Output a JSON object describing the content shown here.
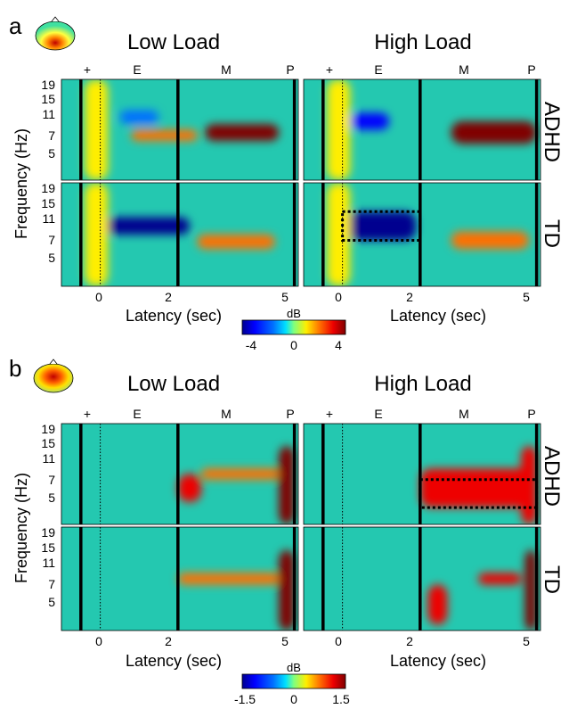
{
  "colors": {
    "colormap": [
      "#00008f",
      "#0000ff",
      "#0070ff",
      "#00e0ff",
      "#7fff7f",
      "#ffee00",
      "#ff7000",
      "#ee0000",
      "#800000"
    ],
    "background": "#24c8b0",
    "marker_line": "#000000"
  },
  "panel_a": {
    "letter": "a",
    "conditions": {
      "left": "Low Load",
      "right": "High Load"
    },
    "groups": [
      "ADHD",
      "TD"
    ],
    "phase_markers": [
      "+",
      "E",
      "M",
      "P"
    ],
    "ylabel": "Frequency (Hz)",
    "xlabel": "Latency (sec)",
    "yticks": [
      "19",
      "15",
      "11",
      "7",
      "5"
    ],
    "xticks": [
      "0",
      "2",
      "5"
    ],
    "colorbar": {
      "title": "dB",
      "ticks": [
        "-4",
        "0",
        "4"
      ]
    }
  },
  "panel_b": {
    "letter": "b",
    "conditions": {
      "left": "Low Load",
      "right": "High Load"
    },
    "groups": [
      "ADHD",
      "TD"
    ],
    "phase_markers": [
      "+",
      "E",
      "M",
      "P"
    ],
    "ylabel": "Frequency (Hz)",
    "xlabel": "Latency (sec)",
    "yticks": [
      "19",
      "15",
      "11",
      "7",
      "5"
    ],
    "xticks": [
      "0",
      "2",
      "5"
    ],
    "colorbar": {
      "title": "dB",
      "ticks": [
        "-1.5",
        "0",
        "1.5"
      ]
    }
  },
  "chart_data": [
    {
      "type": "heatmap",
      "panel": "a",
      "xlabel": "Latency (sec)",
      "ylabel": "Frequency (Hz)",
      "xlim": [
        -1.0,
        5.1
      ],
      "ylim": [
        1,
        19
      ],
      "xticks": [
        0,
        2,
        5
      ],
      "yticks": [
        5,
        7,
        11,
        15,
        19
      ],
      "event_lines_sec": [
        -0.5,
        2,
        5
      ],
      "stimulus_onset_sec": 0,
      "colorbar_range_db": [
        -4,
        4
      ],
      "maps": [
        {
          "condition": "Low Load",
          "group": "ADHD",
          "blobs": [
            {
              "t": [
                2.7,
                4.6
              ],
              "f": [
                8,
                11
              ],
              "db": 4.0
            },
            {
              "t": [
                0.8,
                2.5
              ],
              "f": [
                8,
                10
              ],
              "db": 2.2
            },
            {
              "t": [
                0.5,
                1.5
              ],
              "f": [
                11,
                13.5
              ],
              "db": -1.6
            },
            {
              "t": [
                -0.4,
                0.2
              ],
              "f": [
                1,
                19
              ],
              "db": 1.2
            }
          ]
        },
        {
          "condition": "High Load",
          "group": "ADHD",
          "blobs": [
            {
              "t": [
                2.8,
                5.0
              ],
              "f": [
                7.5,
                11.5
              ],
              "db": 4.2
            },
            {
              "t": [
                0.2,
                1.2
              ],
              "f": [
                10,
                13
              ],
              "db": -3.5
            },
            {
              "t": [
                -0.4,
                0.2
              ],
              "f": [
                1,
                19
              ],
              "db": 1.2
            }
          ]
        },
        {
          "condition": "Low Load",
          "group": "TD",
          "blobs": [
            {
              "t": [
                0.1,
                2.3
              ],
              "f": [
                10,
                13
              ],
              "db": -3.8
            },
            {
              "t": [
                2.5,
                4.5
              ],
              "f": [
                7.5,
                10
              ],
              "db": 1.8
            },
            {
              "t": [
                -0.4,
                0.2
              ],
              "f": [
                1,
                19
              ],
              "db": 1.3
            }
          ]
        },
        {
          "condition": "High Load",
          "group": "TD",
          "blobs": [
            {
              "t": [
                0.1,
                1.9
              ],
              "f": [
                9,
                14
              ],
              "db": -4.2
            },
            {
              "t": [
                2.8,
                4.8
              ],
              "f": [
                7.5,
                10.5
              ],
              "db": 1.8
            },
            {
              "t": [
                -0.4,
                0.2
              ],
              "f": [
                1,
                19
              ],
              "db": 1.4
            }
          ]
        }
      ],
      "highlight_box": {
        "condition": "High Load",
        "group": "TD",
        "t": [
          0,
          2
        ],
        "f": [
          9,
          14
        ]
      }
    },
    {
      "type": "heatmap",
      "panel": "b",
      "xlabel": "Latency (sec)",
      "ylabel": "Frequency (Hz)",
      "xlim": [
        -1.0,
        5.1
      ],
      "ylim": [
        1,
        19
      ],
      "xticks": [
        0,
        2,
        5
      ],
      "yticks": [
        5,
        7,
        11,
        15,
        19
      ],
      "event_lines_sec": [
        -0.5,
        2,
        5
      ],
      "stimulus_onset_sec": 0,
      "colorbar_range_db": [
        -1.5,
        1.5
      ],
      "maps": [
        {
          "condition": "Low Load",
          "group": "ADHD",
          "blobs": [
            {
              "t": [
                2.0,
                2.6
              ],
              "f": [
                5,
                10
              ],
              "db": 1.3
            },
            {
              "t": [
                2.6,
                4.6
              ],
              "f": [
                9,
                11
              ],
              "db": 0.9
            },
            {
              "t": [
                4.6,
                5.0
              ],
              "f": [
                1,
                15
              ],
              "db": 1.5
            }
          ]
        },
        {
          "condition": "High Load",
          "group": "ADHD",
          "blobs": [
            {
              "t": [
                2.0,
                4.9
              ],
              "f": [
                4,
                11
              ],
              "db": 1.2
            },
            {
              "t": [
                4.6,
                5.0
              ],
              "f": [
                1,
                15
              ],
              "db": 1.3
            }
          ]
        },
        {
          "condition": "Low Load",
          "group": "TD",
          "blobs": [
            {
              "t": [
                2.0,
                4.6
              ],
              "f": [
                9,
                11
              ],
              "db": 0.8
            },
            {
              "t": [
                4.6,
                5.0
              ],
              "f": [
                1,
                15
              ],
              "db": 1.5
            }
          ]
        },
        {
          "condition": "High Load",
          "group": "TD",
          "blobs": [
            {
              "t": [
                2.2,
                2.7
              ],
              "f": [
                2,
                9
              ],
              "db": 1.3
            },
            {
              "t": [
                3.5,
                4.6
              ],
              "f": [
                9,
                11
              ],
              "db": 1.2
            },
            {
              "t": [
                4.7,
                5.0
              ],
              "f": [
                1,
                15
              ],
              "db": 1.5
            }
          ]
        }
      ],
      "highlight_box": {
        "condition": "High Load",
        "group": "ADHD",
        "t": [
          2,
          5
        ],
        "f": [
          4,
          9
        ]
      }
    }
  ]
}
